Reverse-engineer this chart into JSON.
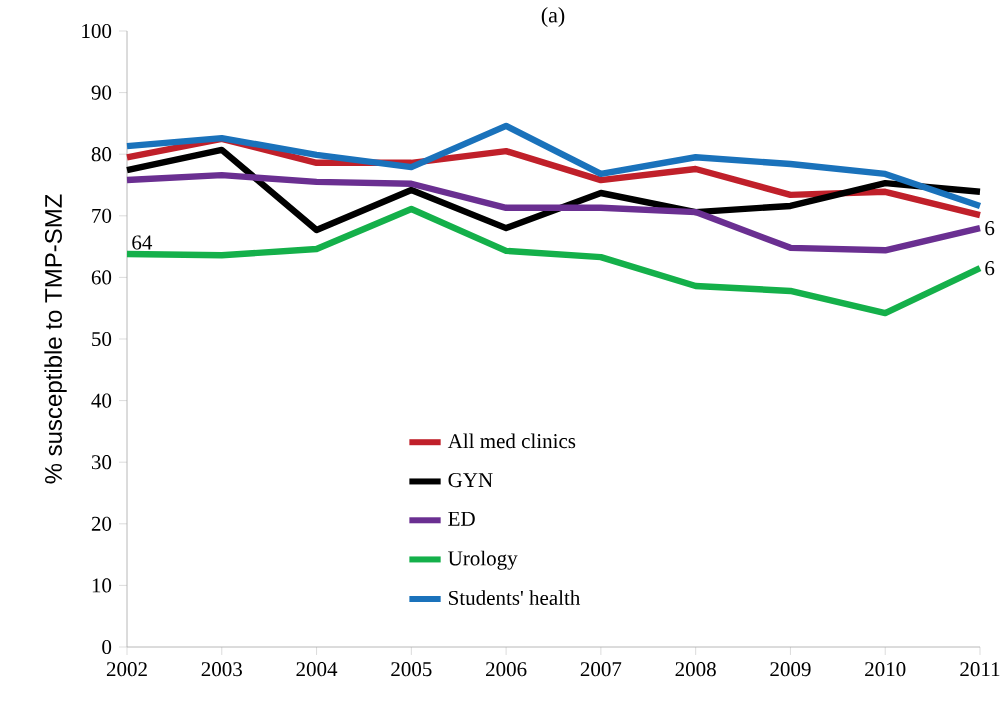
{
  "chart_data": {
    "type": "line",
    "title": "(a)",
    "ylabel": "% susceptible to TMP-SMZ",
    "categories": [
      "2002",
      "2003",
      "2004",
      "2005",
      "2006",
      "2007",
      "2008",
      "2009",
      "2010",
      "2011"
    ],
    "series": [
      {
        "name": "All med clinics",
        "color": "#c0202a",
        "values": [
          79.5,
          82.5,
          78.6,
          78.6,
          80.5,
          75.8,
          77.6,
          73.4,
          73.9,
          70.1
        ]
      },
      {
        "name": "GYN",
        "color": "#000000",
        "values": [
          77.4,
          80.7,
          67.7,
          74.2,
          68.0,
          73.7,
          70.6,
          71.6,
          75.3,
          73.9
        ]
      },
      {
        "name": "ED",
        "color": "#6a2f91",
        "values": [
          75.8,
          76.6,
          75.5,
          75.2,
          71.3,
          71.3,
          70.6,
          64.8,
          64.4,
          68.0
        ]
      },
      {
        "name": "Urology",
        "color": "#14b04a",
        "values": [
          63.8,
          63.6,
          64.6,
          71.1,
          64.3,
          63.3,
          58.6,
          57.8,
          54.2,
          61.5
        ]
      },
      {
        "name": "Students' health",
        "color": "#1a72bb",
        "values": [
          81.3,
          82.6,
          79.9,
          77.9,
          84.6,
          76.8,
          79.5,
          78.4,
          76.8,
          71.6
        ]
      }
    ],
    "ylim": [
      0,
      100
    ],
    "yticks": [
      0,
      10,
      20,
      30,
      40,
      50,
      60,
      70,
      80,
      90,
      100
    ],
    "grid": false,
    "legend": "bottom",
    "marker": "none",
    "line_style": "solid",
    "annotations": [
      {
        "text": "64",
        "x": "2002",
        "y": 63.8
      },
      {
        "text": "6",
        "x": "2011",
        "y": 68.0
      },
      {
        "text": "6",
        "x": "2011",
        "y": 61.5
      }
    ]
  }
}
